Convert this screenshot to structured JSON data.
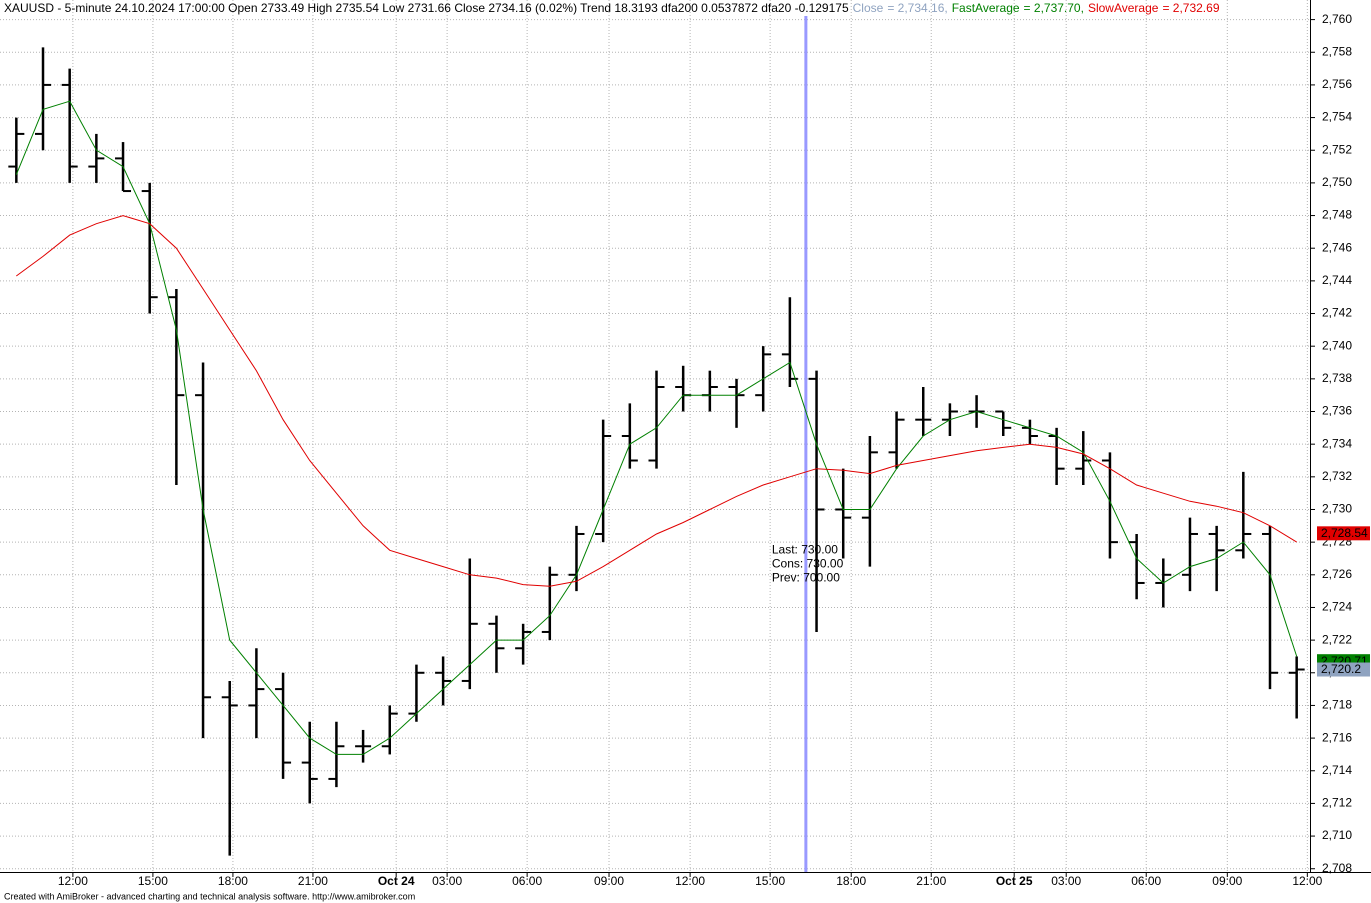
{
  "chart_data": {
    "type": "ohlc",
    "title": "XAUUSD - 5-minute 24.10.2024 17:00:00 Open 2733.49 High 2735.54 Low 2731.66 Close 2734.16 (0.02%) Trend 18.3193 dfa200 0.0537872 dfa20 -0.129175",
    "price_name": "Close",
    "price_legend": "= 2,734.16,",
    "price_legend_color": "#8fa3c0",
    "footer": "Created with AmiBroker - advanced charting and technical analysis software. http://www.amibroker.com",
    "open": [
      2751,
      2753,
      2756,
      2751,
      2751.5,
      2749.5,
      2743,
      2737,
      2718.5,
      2718,
      2719,
      2714.5,
      2713.5,
      2715.5,
      2715.5,
      2717.5,
      2720,
      2719.5,
      2723,
      2721.5,
      2722.5,
      2726,
      2728.5,
      2734.5,
      2733,
      2737.5,
      2737,
      2737.5,
      2737,
      2739.5,
      2738,
      2730,
      2729.5,
      2733.5,
      2735.5,
      2735.5,
      2736,
      2736,
      2735,
      2734.5,
      2732.5,
      2733,
      2728,
      2725.5,
      2726,
      2728.5,
      2727.5,
      2728.5,
      2720
    ],
    "high": [
      2754,
      2758.3,
      2757,
      2753,
      2752.5,
      2750,
      2743.5,
      2739,
      2719.5,
      2721.5,
      2720,
      2717,
      2717,
      2716.5,
      2718,
      2720.5,
      2721,
      2727,
      2723.5,
      2723,
      2726.5,
      2729,
      2735.5,
      2736.5,
      2738.5,
      2738.8,
      2738.5,
      2738,
      2740,
      2743,
      2738.5,
      2732.5,
      2734.5,
      2736,
      2737.5,
      2736.5,
      2737,
      2736,
      2735.5,
      2735,
      2734.8,
      2733.5,
      2728.5,
      2727,
      2729.5,
      2729,
      2732.3,
      2729,
      2721
    ],
    "low": [
      2750,
      2752,
      2750,
      2750,
      2749.5,
      2742,
      2731.5,
      2716,
      2708.8,
      2716,
      2713.5,
      2712,
      2713,
      2714.5,
      2715,
      2717,
      2718,
      2719,
      2720,
      2720.5,
      2722,
      2725,
      2728,
      2732.5,
      2732.5,
      2736,
      2736,
      2735,
      2736,
      2737.5,
      2722.5,
      2727,
      2726.5,
      2732.5,
      2734.5,
      2734.5,
      2735,
      2734.5,
      2734,
      2731.5,
      2731.5,
      2727,
      2724.5,
      2724,
      2725,
      2725,
      2727,
      2719,
      2717.2
    ],
    "close": [
      2753,
      2756,
      2751,
      2751.5,
      2749.5,
      2743,
      2737,
      2718.5,
      2718,
      2719,
      2714.5,
      2713.5,
      2715.5,
      2715.5,
      2717.5,
      2720,
      2719.5,
      2723,
      2721.5,
      2722.5,
      2726,
      2728.5,
      2734.5,
      2733,
      2737.5,
      2737,
      2737.5,
      2737,
      2739.5,
      2738,
      2730,
      2729.5,
      2733.5,
      2735.5,
      2735.5,
      2736,
      2736,
      2735,
      2734.5,
      2732.5,
      2733,
      2728,
      2725.5,
      2726,
      2728.5,
      2727.5,
      2728.5,
      2720,
      2720.2
    ],
    "color": "#000000",
    "series": [
      {
        "name": "FastAverage",
        "legend": "= 2,737.70,",
        "color": "#008000",
        "values": [
          2750.5,
          2754.5,
          2755,
          2752,
          2751,
          2747.5,
          2741,
          2730,
          2722,
          2720,
          2718,
          2716,
          2715,
          2715,
          2716,
          2717.5,
          2719,
          2720.5,
          2722,
          2722,
          2723.5,
          2726,
          2730,
          2734,
          2735,
          2737,
          2737,
          2737,
          2738,
          2739,
          2734,
          2730,
          2730,
          2732.5,
          2734.5,
          2735.5,
          2736,
          2735.5,
          2735,
          2734.5,
          2733.5,
          2730.5,
          2727,
          2725.5,
          2726.5,
          2727,
          2728,
          2726,
          2721
        ]
      },
      {
        "name": "SlowAverage",
        "legend": "= 2,732.69",
        "color": "#e00000",
        "values": [
          2744.3,
          2745.5,
          2746.8,
          2747.5,
          2748,
          2747.5,
          2746,
          2743.5,
          2741,
          2738.5,
          2735.5,
          2733,
          2731,
          2729,
          2727.5,
          2727,
          2726.5,
          2726,
          2725.8,
          2725.4,
          2725.3,
          2725.6,
          2726.5,
          2727.5,
          2728.5,
          2729.2,
          2730,
          2730.8,
          2731.5,
          2732,
          2732.5,
          2732.4,
          2732.2,
          2732.7,
          2733,
          2733.3,
          2733.6,
          2733.8,
          2734,
          2733.8,
          2733.4,
          2732.5,
          2731.5,
          2731,
          2730.5,
          2730.2,
          2729.8,
          2729,
          2728
        ]
      }
    ],
    "markers": [
      {
        "value": 2728.54,
        "label": "2,728.54",
        "color": "#e00000"
      },
      {
        "value": 2720.71,
        "label": "2,720.71",
        "color": "#008000"
      },
      {
        "value": 2720.2,
        "label": "2,720.2",
        "color": "#8fa3c0"
      }
    ],
    "annotation": {
      "x": 30.1,
      "color": "#9999ff",
      "text_color": "#008000",
      "lines": [
        "Last: 730.00",
        "Cons: 730.00",
        "Prev: 700.00"
      ]
    },
    "xlim": [
      0,
      49
    ],
    "xticks": [
      {
        "value": 2.62,
        "label": "12:00"
      },
      {
        "value": 5.62,
        "label": "15:00"
      },
      {
        "value": 8.62,
        "label": "18:00"
      },
      {
        "value": 11.62,
        "label": "21:00"
      },
      {
        "value": 14.74,
        "label": "Oct 24"
      },
      {
        "value": 16.65,
        "label": "03:00"
      },
      {
        "value": 19.65,
        "label": "06:00"
      },
      {
        "value": 22.72,
        "label": "09:00"
      },
      {
        "value": 25.76,
        "label": "12:00"
      },
      {
        "value": 28.76,
        "label": "15:00"
      },
      {
        "value": 31.8,
        "label": "18:00"
      },
      {
        "value": 34.8,
        "label": "21:00"
      },
      {
        "value": 37.91,
        "label": "Oct 25"
      },
      {
        "value": 39.86,
        "label": "03:00"
      },
      {
        "value": 42.86,
        "label": "06:00"
      },
      {
        "value": 45.9,
        "label": "09:00"
      },
      {
        "value": 48.9,
        "label": "12:00"
      }
    ],
    "ylim": [
      2707.8,
      2761.2
    ],
    "yticks": [
      {
        "value": 2708,
        "label": "2,708"
      },
      {
        "value": 2710,
        "label": "2,710"
      },
      {
        "value": 2712,
        "label": "2,712"
      },
      {
        "value": 2714,
        "label": "2,714"
      },
      {
        "value": 2716,
        "label": "2,716"
      },
      {
        "value": 2718,
        "label": "2,718"
      },
      {
        "value": 2720,
        "label": "2,720"
      },
      {
        "value": 2722,
        "label": "2,722"
      },
      {
        "value": 2724,
        "label": "2,724"
      },
      {
        "value": 2726,
        "label": "2,726"
      },
      {
        "value": 2728,
        "label": "2,728"
      },
      {
        "value": 2730,
        "label": "2,730"
      },
      {
        "value": 2732,
        "label": "2,732"
      },
      {
        "value": 2734,
        "label": "2,734"
      },
      {
        "value": 2736,
        "label": "2,736"
      },
      {
        "value": 2738,
        "label": "2,738"
      },
      {
        "value": 2740,
        "label": "2,740"
      },
      {
        "value": 2742,
        "label": "2,742"
      },
      {
        "value": 2744,
        "label": "2,744"
      },
      {
        "value": 2746,
        "label": "2,746"
      },
      {
        "value": 2748,
        "label": "2,748"
      },
      {
        "value": 2750,
        "label": "2,750"
      },
      {
        "value": 2752,
        "label": "2,752"
      },
      {
        "value": 2754,
        "label": "2,754"
      },
      {
        "value": 2756,
        "label": "2,756"
      },
      {
        "value": 2758,
        "label": "2,758"
      },
      {
        "value": 2760,
        "label": "2,760"
      }
    ],
    "grid": true
  }
}
